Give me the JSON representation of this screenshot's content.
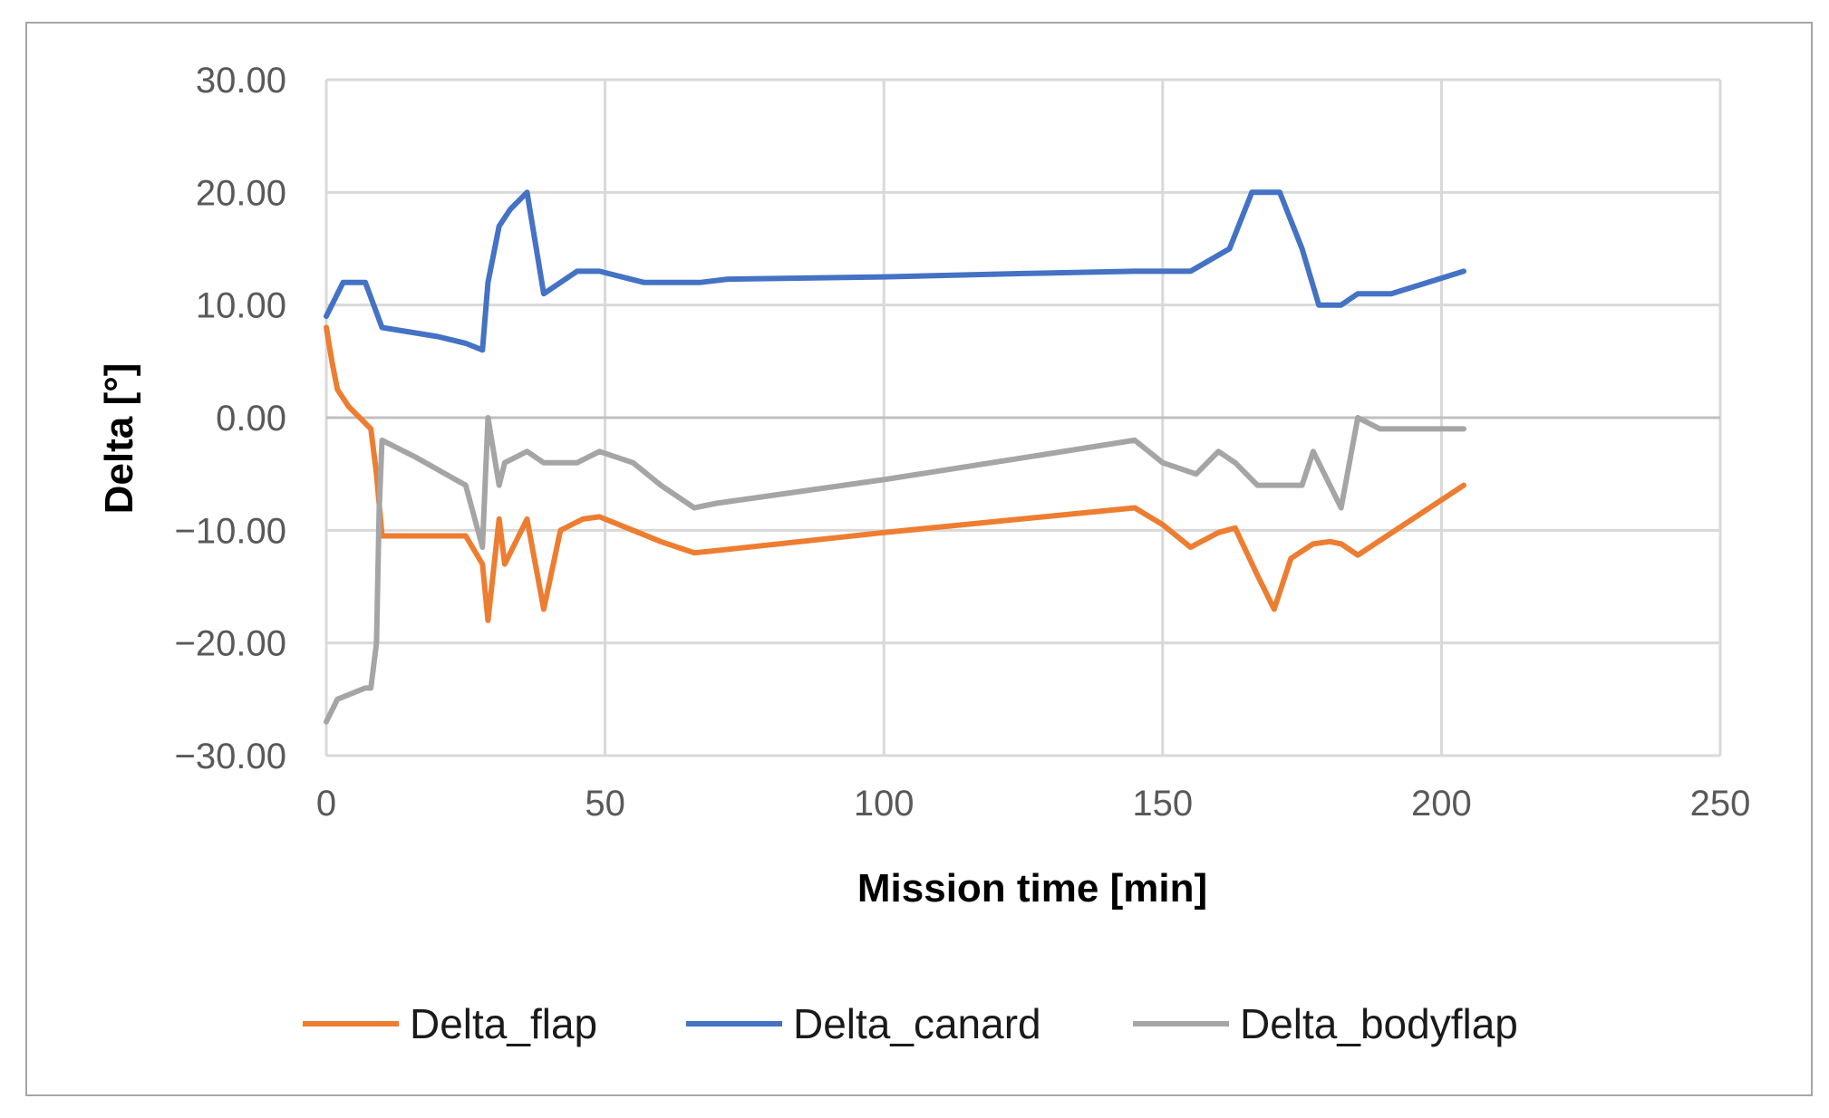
{
  "chart_data": {
    "type": "line",
    "title": "",
    "xlabel": "Mission time [min]",
    "ylabel": "Delta [°]",
    "xlim": [
      0,
      250
    ],
    "ylim": [
      -30,
      30
    ],
    "xticks": [
      0,
      50,
      100,
      150,
      200,
      250
    ],
    "xtick_labels": [
      "0",
      "50",
      "100",
      "150",
      "200",
      "250"
    ],
    "yticks": [
      30,
      20,
      10,
      0,
      -10,
      -20,
      -30
    ],
    "ytick_labels": [
      "30.00",
      "20.00",
      "10.00",
      "0.00",
      "−10.00",
      "−20.00",
      "−30.00"
    ],
    "grid": true,
    "legend_position": "bottom",
    "series": [
      {
        "name": "Delta_flap",
        "color": "#ed7d31",
        "points": [
          [
            0,
            8
          ],
          [
            1,
            5
          ],
          [
            2,
            2.5
          ],
          [
            4,
            1
          ],
          [
            6,
            0
          ],
          [
            8,
            -1
          ],
          [
            9,
            -5
          ],
          [
            10,
            -10.5
          ],
          [
            25,
            -10.5
          ],
          [
            28,
            -13
          ],
          [
            29,
            -18
          ],
          [
            31,
            -9
          ],
          [
            32,
            -13
          ],
          [
            34,
            -11
          ],
          [
            36,
            -9
          ],
          [
            39,
            -17
          ],
          [
            42,
            -10
          ],
          [
            46,
            -9
          ],
          [
            49,
            -8.8
          ],
          [
            55,
            -10
          ],
          [
            60,
            -11
          ],
          [
            66,
            -12
          ],
          [
            70,
            -11.8
          ],
          [
            100,
            -10.2
          ],
          [
            145,
            -8
          ],
          [
            150,
            -9.5
          ],
          [
            155,
            -11.5
          ],
          [
            160,
            -10.2
          ],
          [
            163,
            -9.8
          ],
          [
            167,
            -14
          ],
          [
            170,
            -17
          ],
          [
            173,
            -12.5
          ],
          [
            177,
            -11.2
          ],
          [
            180,
            -11
          ],
          [
            182,
            -11.2
          ],
          [
            185,
            -12.2
          ],
          [
            204,
            -6
          ]
        ]
      },
      {
        "name": "Delta_canard",
        "color": "#4472c4",
        "points": [
          [
            0,
            9
          ],
          [
            3,
            12
          ],
          [
            7,
            12
          ],
          [
            10,
            8
          ],
          [
            15,
            7.6
          ],
          [
            20,
            7.2
          ],
          [
            25,
            6.6
          ],
          [
            28,
            6
          ],
          [
            29,
            12
          ],
          [
            31,
            17
          ],
          [
            33,
            18.5
          ],
          [
            36,
            20
          ],
          [
            39,
            11
          ],
          [
            45,
            13
          ],
          [
            49,
            13
          ],
          [
            57,
            12
          ],
          [
            67,
            12
          ],
          [
            72,
            12.3
          ],
          [
            100,
            12.5
          ],
          [
            125,
            12.8
          ],
          [
            145,
            13
          ],
          [
            155,
            13
          ],
          [
            162,
            15
          ],
          [
            166,
            20
          ],
          [
            171,
            20
          ],
          [
            175,
            15
          ],
          [
            178,
            10
          ],
          [
            182,
            10
          ],
          [
            185,
            11
          ],
          [
            191,
            11
          ],
          [
            204,
            13
          ]
        ]
      },
      {
        "name": "Delta_bodyflap",
        "color": "#a5a5a5",
        "points": [
          [
            0,
            -27
          ],
          [
            2,
            -25
          ],
          [
            7,
            -24
          ],
          [
            8,
            -24
          ],
          [
            9,
            -20
          ],
          [
            9.5,
            -8
          ],
          [
            10,
            -2
          ],
          [
            16,
            -3.5
          ],
          [
            25,
            -6
          ],
          [
            28,
            -11.5
          ],
          [
            29,
            0
          ],
          [
            31,
            -6
          ],
          [
            32,
            -4
          ],
          [
            36,
            -3
          ],
          [
            39,
            -4
          ],
          [
            45,
            -4
          ],
          [
            49,
            -3
          ],
          [
            55,
            -4
          ],
          [
            60,
            -6
          ],
          [
            66,
            -8
          ],
          [
            70,
            -7.6
          ],
          [
            100,
            -5.5
          ],
          [
            145,
            -2
          ],
          [
            150,
            -4
          ],
          [
            156,
            -5
          ],
          [
            160,
            -3
          ],
          [
            163,
            -4
          ],
          [
            167,
            -6
          ],
          [
            175,
            -6
          ],
          [
            177,
            -3
          ],
          [
            179,
            -5
          ],
          [
            182,
            -8
          ],
          [
            185,
            0
          ],
          [
            189,
            -1
          ],
          [
            204,
            -1
          ]
        ]
      }
    ]
  }
}
